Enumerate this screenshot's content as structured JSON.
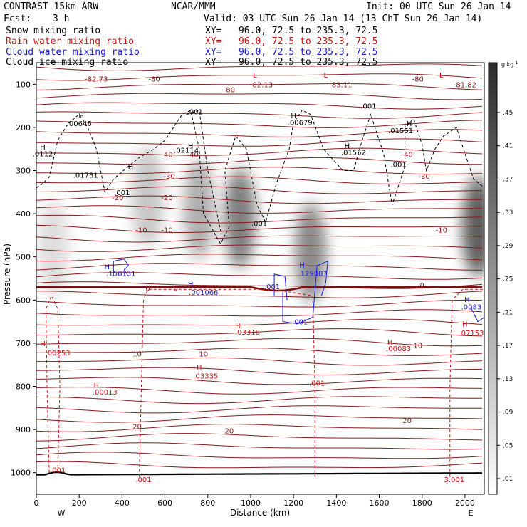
{
  "header": {
    "model": "CONTRAST 15km ARW",
    "org": "NCAR/MMM",
    "init": "Init: 00 UTC Sun 26 Jan 14",
    "fcst_label": "Fcst:",
    "fcst_value": "3 h",
    "valid": "Valid: 03 UTC Sun 26 Jan 14 (13 ChT Sun 26 Jan 14)"
  },
  "fields": [
    {
      "label": "Snow mixing ratio",
      "xy": "XY=   96.0, 72.5 to 235.3, 72.5",
      "color": "#000000"
    },
    {
      "label": "Rain water mixing ratio",
      "xy": "XY=   96.0, 72.5 to 235.3, 72.5",
      "color": "#cc1111"
    },
    {
      "label": "Cloud water mixing ratio",
      "xy": "XY=   96.0, 72.5 to 235.3, 72.5",
      "color": "#1a1adb"
    },
    {
      "label": "Cloud ice mixing ratio",
      "xy": "XY=   96.0, 72.5 to 235.3, 72.5",
      "color": "#000000"
    }
  ],
  "chart_data": {
    "type": "cross-section contour",
    "xlabel": "Distance (km)",
    "ylabel": "Pressure (hPa)",
    "xlim": [
      0,
      2090
    ],
    "ylim": [
      1050,
      50
    ],
    "x_ticks": [
      0,
      200,
      400,
      600,
      800,
      1000,
      1200,
      1400,
      1600,
      1800,
      2000
    ],
    "y_ticks": [
      100,
      200,
      300,
      400,
      500,
      600,
      700,
      800,
      900,
      1000
    ],
    "x_end_labels": {
      "left": "W",
      "right": "E"
    },
    "colorbar": {
      "unit": "g kg",
      "unit_exp": "-1",
      "ticks": [
        ".45",
        ".41",
        ".37",
        ".33",
        ".29",
        ".25",
        ".21",
        ".17",
        ".13",
        ".09",
        ".05",
        ".01"
      ],
      "range": [
        0.01,
        0.47
      ]
    },
    "temperature_contours": {
      "color": "#8b1a1a",
      "labels": [
        {
          "x": 280,
          "p": 87,
          "text": "-82.73"
        },
        {
          "x": 550,
          "p": 87,
          "text": "-80"
        },
        {
          "x": 900,
          "p": 112,
          "text": "-80"
        },
        {
          "x": 1050,
          "p": 100,
          "text": "-82.13"
        },
        {
          "x": 1420,
          "p": 100,
          "text": "-83.11"
        },
        {
          "x": 1780,
          "p": 87,
          "text": "-80"
        },
        {
          "x": 2000,
          "p": 100,
          "text": "-81.82"
        },
        {
          "x": 610,
          "p": 262,
          "text": "-40"
        },
        {
          "x": 730,
          "p": 262,
          "text": "-40"
        },
        {
          "x": 1730,
          "p": 262,
          "text": "-40"
        },
        {
          "x": 620,
          "p": 312,
          "text": "-30"
        },
        {
          "x": 1810,
          "p": 312,
          "text": "-30"
        },
        {
          "x": 380,
          "p": 362,
          "text": "-20"
        },
        {
          "x": 610,
          "p": 362,
          "text": "-20"
        },
        {
          "x": 490,
          "p": 437,
          "text": "-10"
        },
        {
          "x": 610,
          "p": 437,
          "text": "-10"
        },
        {
          "x": 1890,
          "p": 437,
          "text": "-10"
        },
        {
          "x": 520,
          "p": 572,
          "text": "0"
        },
        {
          "x": 650,
          "p": 572,
          "text": "0"
        },
        {
          "x": 1800,
          "p": 565,
          "text": "0"
        },
        {
          "x": 470,
          "p": 724,
          "text": "10"
        },
        {
          "x": 780,
          "p": 724,
          "text": "10"
        },
        {
          "x": 1780,
          "p": 704,
          "text": "10"
        },
        {
          "x": 470,
          "p": 892,
          "text": "20"
        },
        {
          "x": 900,
          "p": 902,
          "text": "20"
        },
        {
          "x": 1730,
          "p": 878,
          "text": "20"
        }
      ]
    },
    "maxima_labels": [
      {
        "x": 200,
        "p": 190,
        "text": ".00646",
        "color": "#000000"
      },
      {
        "x": 30,
        "p": 260,
        "text": ".0112",
        "color": "#000000"
      },
      {
        "x": 230,
        "p": 310,
        "text": ".01731",
        "color": "#000000"
      },
      {
        "x": 700,
        "p": 252,
        "text": ".02114",
        "color": "#000000"
      },
      {
        "x": 740,
        "p": 163,
        "text": ".001",
        "color": "#000000"
      },
      {
        "x": 1230,
        "p": 188,
        "text": ".00679",
        "color": "#000000"
      },
      {
        "x": 1480,
        "p": 257,
        "text": ".01562",
        "color": "#000000"
      },
      {
        "x": 1700,
        "p": 207,
        "text": ".01551",
        "color": "#000000"
      },
      {
        "x": 1550,
        "p": 150,
        "text": ".001",
        "color": "#000000"
      },
      {
        "x": 1690,
        "p": 285,
        "text": ".001",
        "color": "#000000"
      },
      {
        "x": 400,
        "p": 350,
        "text": ".001",
        "color": "#000000"
      },
      {
        "x": 1040,
        "p": 422,
        "text": ".001",
        "color": "#000000"
      },
      {
        "x": 395,
        "p": 538,
        "text": ".158131",
        "color": "#1a1adb"
      },
      {
        "x": 780,
        "p": 581,
        "text": ".001066",
        "color": "#1a1adb"
      },
      {
        "x": 1100,
        "p": 568,
        "text": ".001",
        "color": "#1a1adb"
      },
      {
        "x": 1290,
        "p": 538,
        "text": ".129087",
        "color": "#1a1adb"
      },
      {
        "x": 1230,
        "p": 650,
        "text": ".001",
        "color": "#1a1adb"
      },
      {
        "x": 2030,
        "p": 615,
        "text": ".0083",
        "color": "#1a1adb"
      },
      {
        "x": 100,
        "p": 722,
        "text": ".00253",
        "color": "#cc1111"
      },
      {
        "x": 320,
        "p": 812,
        "text": ".00013",
        "color": "#cc1111"
      },
      {
        "x": 985,
        "p": 674,
        "text": ".03318",
        "color": "#cc1111"
      },
      {
        "x": 790,
        "p": 775,
        "text": ".03335",
        "color": "#cc1111"
      },
      {
        "x": 1690,
        "p": 712,
        "text": ".00083",
        "color": "#cc1111"
      },
      {
        "x": 2030,
        "p": 675,
        "text": ".07153",
        "color": "#cc1111"
      },
      {
        "x": 1310,
        "p": 792,
        "text": ".001",
        "color": "#cc1111"
      },
      {
        "x": 100,
        "p": 993,
        "text": ".001",
        "color": "#cc1111"
      },
      {
        "x": 500,
        "p": 1015,
        "text": ".001",
        "color": "#cc1111"
      },
      {
        "x": 1950,
        "p": 1015,
        "text": "3.001",
        "color": "#cc1111"
      }
    ],
    "extrema_marks": [
      {
        "x": 30,
        "p": 245,
        "text": "H",
        "color": "#000000"
      },
      {
        "x": 210,
        "p": 172,
        "text": "H",
        "color": "#000000"
      },
      {
        "x": 440,
        "p": 290,
        "text": "H",
        "color": "#000000"
      },
      {
        "x": 720,
        "p": 242,
        "text": "H",
        "color": "#000000"
      },
      {
        "x": 1200,
        "p": 172,
        "text": "H",
        "color": "#000000"
      },
      {
        "x": 1450,
        "p": 242,
        "text": "H",
        "color": "#000000"
      },
      {
        "x": 1740,
        "p": 190,
        "text": "H",
        "color": "#000000"
      },
      {
        "x": 1020,
        "p": 78,
        "text": "L",
        "color": "#cc1111"
      },
      {
        "x": 1350,
        "p": 78,
        "text": "L",
        "color": "#cc1111"
      },
      {
        "x": 1890,
        "p": 78,
        "text": "L",
        "color": "#cc1111"
      },
      {
        "x": 330,
        "p": 522,
        "text": "H",
        "color": "#1a1adb"
      },
      {
        "x": 720,
        "p": 562,
        "text": "H",
        "color": "#1a1adb"
      },
      {
        "x": 1240,
        "p": 518,
        "text": "H",
        "color": "#1a1adb"
      },
      {
        "x": 2010,
        "p": 598,
        "text": "H",
        "color": "#1a1adb"
      },
      {
        "x": 30,
        "p": 700,
        "text": "H",
        "color": "#cc1111"
      },
      {
        "x": 280,
        "p": 797,
        "text": "H",
        "color": "#cc1111"
      },
      {
        "x": 940,
        "p": 659,
        "text": "H",
        "color": "#cc1111"
      },
      {
        "x": 760,
        "p": 755,
        "text": "H",
        "color": "#cc1111"
      },
      {
        "x": 1650,
        "p": 697,
        "text": "H",
        "color": "#cc1111"
      },
      {
        "x": 2000,
        "p": 655,
        "text": "H",
        "color": "#cc1111"
      }
    ],
    "shading_blobs": [
      {
        "x": 950,
        "p": 410,
        "value": 0.3
      },
      {
        "x": 1280,
        "p": 490,
        "value": 0.27
      },
      {
        "x": 760,
        "p": 390,
        "value": 0.18
      },
      {
        "x": 520,
        "p": 360,
        "value": 0.12
      },
      {
        "x": 80,
        "p": 480,
        "value": 0.06
      },
      {
        "x": 2060,
        "p": 430,
        "value": 0.38
      }
    ]
  }
}
